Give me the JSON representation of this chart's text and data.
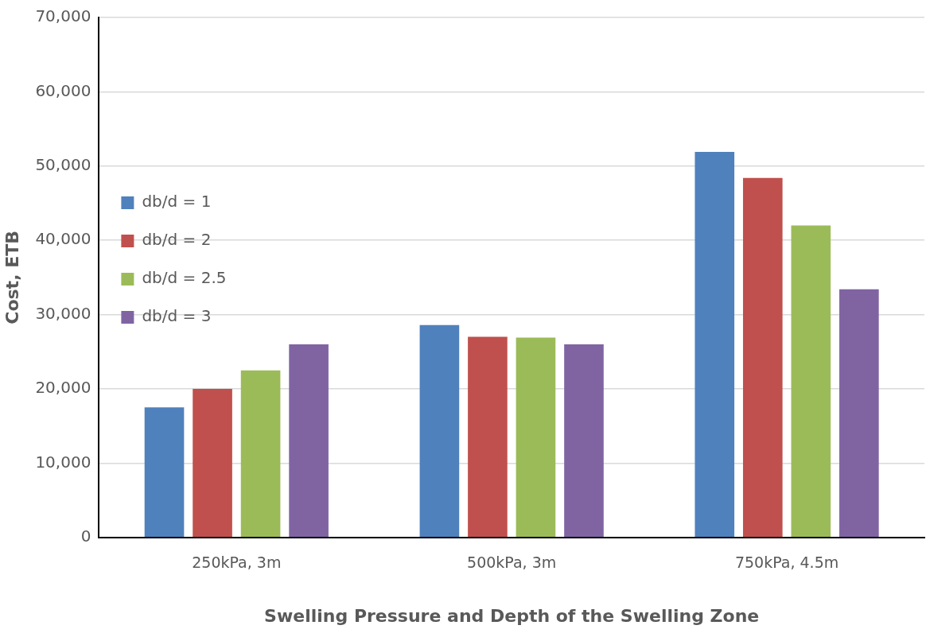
{
  "chart_data": {
    "type": "bar",
    "xlabel": "Swelling Pressure and Depth of the Swelling Zone",
    "ylabel": "Cost, ETB",
    "categories": [
      "250kPa, 3m",
      "500kPa, 3m",
      "750kPa, 4.5m"
    ],
    "series": [
      {
        "name": "db/d = 1",
        "color": "#4f81bd",
        "values": [
          17500,
          28600,
          51900
        ]
      },
      {
        "name": "db/d = 2",
        "color": "#c0504d",
        "values": [
          20000,
          27000,
          48400
        ]
      },
      {
        "name": "db/d = 2.5",
        "color": "#9bbb59",
        "values": [
          22500,
          26900,
          42000
        ]
      },
      {
        "name": "db/d = 3",
        "color": "#8064a2",
        "values": [
          26000,
          26000,
          33400
        ]
      }
    ],
    "ylim": [
      0,
      70000
    ],
    "yticks": [
      {
        "value": 0,
        "label": "0"
      },
      {
        "value": 10000,
        "label": "10,000"
      },
      {
        "value": 20000,
        "label": "20,000"
      },
      {
        "value": 30000,
        "label": "30,000"
      },
      {
        "value": 40000,
        "label": "40,000"
      },
      {
        "value": 50000,
        "label": "50,000"
      },
      {
        "value": 60000,
        "label": "60,000"
      },
      {
        "value": 70000,
        "label": "70,000"
      }
    ],
    "grid": "y",
    "legend": "top"
  }
}
